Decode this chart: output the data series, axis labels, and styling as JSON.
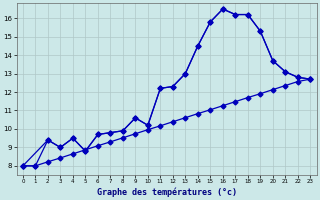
{
  "title": "Graphe des températures (°c)",
  "background_color": "#cce8e8",
  "line_color": "#0000bb",
  "grid_color": "#b0c8c8",
  "xlim": [
    -0.5,
    23.5
  ],
  "ylim": [
    7.5,
    16.8
  ],
  "yticks": [
    8,
    9,
    10,
    11,
    12,
    13,
    14,
    15,
    16
  ],
  "xticks": [
    0,
    1,
    2,
    3,
    4,
    5,
    6,
    7,
    8,
    9,
    10,
    11,
    12,
    13,
    14,
    15,
    16,
    17,
    18,
    19,
    20,
    21,
    22,
    23
  ],
  "line1_x": [
    0,
    1,
    2,
    3,
    4,
    5,
    6,
    7,
    8,
    9,
    10,
    11,
    12,
    13,
    14,
    15,
    16,
    17,
    18,
    19,
    20,
    21,
    22,
    23
  ],
  "line1_y": [
    8.0,
    8.0,
    9.4,
    9.0,
    9.5,
    8.8,
    9.7,
    9.8,
    9.9,
    10.6,
    10.2,
    12.2,
    12.3,
    13.0,
    14.5,
    15.8,
    16.5,
    16.2,
    16.2,
    15.3,
    13.7,
    13.1,
    12.8,
    12.7
  ],
  "line2_x": [
    0,
    2,
    3,
    4,
    5,
    6,
    7,
    8,
    9,
    10,
    11,
    12,
    13,
    14,
    15,
    16,
    17,
    18,
    19,
    20,
    21,
    22,
    23
  ],
  "line2_y": [
    8.0,
    9.4,
    9.0,
    9.5,
    8.8,
    9.7,
    9.8,
    9.9,
    10.6,
    10.2,
    12.2,
    12.3,
    13.0,
    14.5,
    15.8,
    16.5,
    16.2,
    16.2,
    15.3,
    13.7,
    13.1,
    12.8,
    12.7
  ],
  "line3_x": [
    0,
    1,
    2,
    3,
    4,
    5,
    6,
    7,
    8,
    9,
    10,
    11,
    12,
    13,
    14,
    15,
    16,
    17,
    18,
    19,
    20,
    21,
    22,
    23
  ],
  "line3_y": [
    8.0,
    8.0,
    8.22,
    8.43,
    8.65,
    8.87,
    9.09,
    9.3,
    9.52,
    9.74,
    9.96,
    10.17,
    10.39,
    10.61,
    10.83,
    11.04,
    11.26,
    11.48,
    11.7,
    11.91,
    12.13,
    12.35,
    12.57,
    12.7
  ]
}
